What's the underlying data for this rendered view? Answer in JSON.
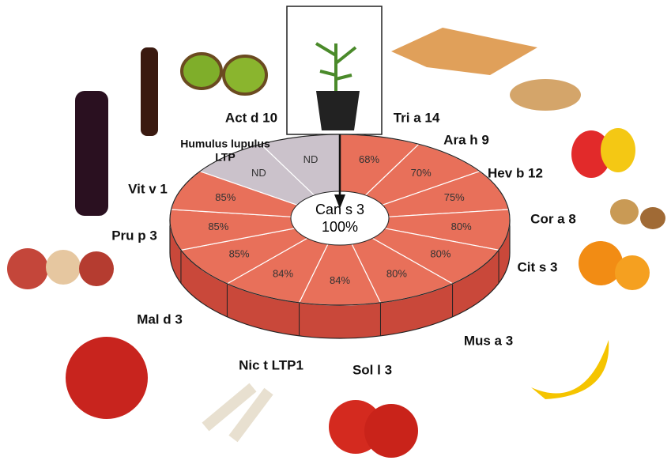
{
  "center": {
    "label": "Can s 3",
    "value": "100%"
  },
  "segments": [
    {
      "allergen": "Tri a 14",
      "identity": "68%",
      "color": "#e8705a"
    },
    {
      "allergen": "Ara h 9",
      "identity": "70%",
      "color": "#e8705a"
    },
    {
      "allergen": "Hev b 12",
      "identity": "75%",
      "color": "#e8705a"
    },
    {
      "allergen": "Cor a 8",
      "identity": "80%",
      "color": "#e8705a"
    },
    {
      "allergen": "Cit s 3",
      "identity": "80%",
      "color": "#e8705a"
    },
    {
      "allergen": "Mus a 3",
      "identity": "80%",
      "color": "#e8705a"
    },
    {
      "allergen": "Sol l 3",
      "identity": "84%",
      "color": "#e8705a"
    },
    {
      "allergen": "Nic t LTP1",
      "identity": "84%",
      "color": "#e8705a"
    },
    {
      "allergen": "Mal d 3",
      "identity": "85%",
      "color": "#e8705a"
    },
    {
      "allergen": "Pru p 3",
      "identity": "85%",
      "color": "#e8705a"
    },
    {
      "allergen": "Vit v 1",
      "identity": "85%",
      "color": "#e8705a"
    },
    {
      "allergen": [
        "Humulus lupulus",
        "LTP"
      ],
      "identity": "ND",
      "color": "#cbc2cb"
    },
    {
      "allergen": "Act d 10",
      "identity": "ND",
      "color": "#cbc2cb"
    }
  ]
}
